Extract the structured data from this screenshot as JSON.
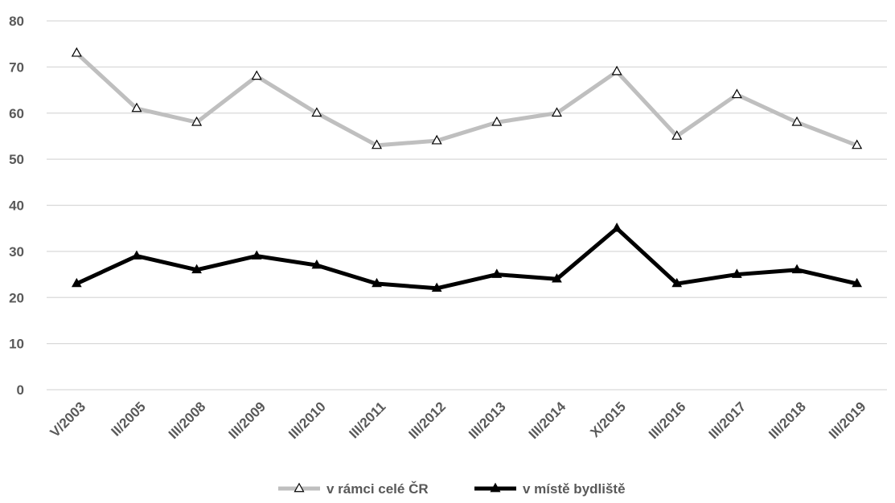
{
  "chart_data": {
    "type": "line",
    "title": "",
    "xlabel": "",
    "ylabel": "",
    "ylim": [
      0,
      80
    ],
    "yticks": [
      0,
      10,
      20,
      30,
      40,
      50,
      60,
      70,
      80
    ],
    "grid": true,
    "legend_position": "bottom",
    "categories": [
      "V/2003",
      "II/2005",
      "III/2008",
      "III/2009",
      "III/2010",
      "III/2011",
      "III/2012",
      "III/2013",
      "III/2014",
      "X/2015",
      "III/2016",
      "III/2017",
      "III/2018",
      "III/2019"
    ],
    "series": [
      {
        "name": "v rámci celé ČR",
        "color": "#bfbfbf",
        "marker": "open-triangle",
        "values": [
          73,
          61,
          58,
          68,
          60,
          53,
          54,
          58,
          60,
          69,
          55,
          64,
          58,
          53
        ]
      },
      {
        "name": "v místě bydliště",
        "color": "#000000",
        "marker": "filled-triangle",
        "values": [
          23,
          29,
          26,
          29,
          27,
          23,
          22,
          25,
          24,
          35,
          23,
          25,
          26,
          23
        ]
      }
    ]
  }
}
